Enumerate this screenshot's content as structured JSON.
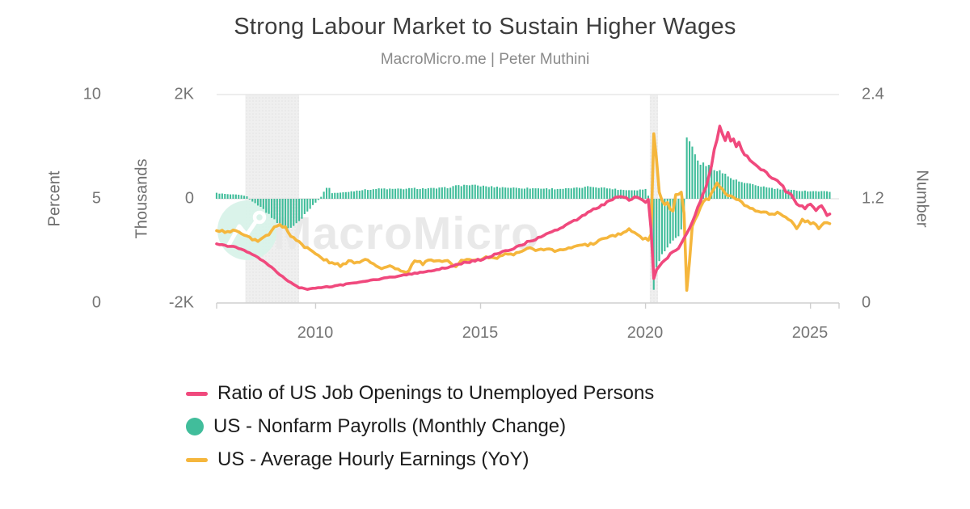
{
  "chart_data": {
    "type": "mixed",
    "title": "Strong Labour Market to Sustain Higher Wages",
    "subtitle": "MacroMicro.me | Peter Muthini",
    "watermark_text": "MacroMicro",
    "grid": "horizontal-only",
    "legend_position": "bottom-left",
    "x_axis": {
      "range": [
        2007.0,
        2025.67
      ],
      "ticks": [
        2010,
        2015,
        2020,
        2025
      ],
      "tick_labels": [
        "2010",
        "2015",
        "2020",
        "2025"
      ]
    },
    "axes": {
      "percent": {
        "label": "Percent",
        "range": [
          0,
          10
        ],
        "ticks": [
          "10",
          "5",
          "0"
        ]
      },
      "thousands": {
        "label": "Thousands",
        "range": [
          -2000,
          2000
        ],
        "ticks": [
          "2K",
          "0",
          "-2K"
        ]
      },
      "number": {
        "label": "Number",
        "range": [
          0,
          2.4
        ],
        "ticks": [
          "2.4",
          "1.2",
          "0"
        ]
      }
    },
    "recession_bands": [
      [
        2007.87,
        2009.5
      ],
      [
        2020.13,
        2020.38
      ]
    ],
    "colors": {
      "ratio_pink": "#F0497D",
      "payrolls_teal": "#41BD9B",
      "earnings_yellow": "#F5B63C",
      "gridline": "#E7E7E7",
      "axis_line": "#CFCFCF",
      "band_gray": "#EFEFEF",
      "watermark_gray": "#E9E9E9",
      "watermark_mint": "#D8F2E9"
    },
    "series": [
      {
        "name": "Ratio of US Job Openings to Unemployed Persons",
        "type": "line",
        "axis": "number",
        "color": "#F0497D",
        "anchors": [
          [
            2007.0,
            0.68
          ],
          [
            2007.25,
            0.66
          ],
          [
            2007.5,
            0.65
          ],
          [
            2007.75,
            0.62
          ],
          [
            2008.0,
            0.58
          ],
          [
            2008.25,
            0.52
          ],
          [
            2008.5,
            0.46
          ],
          [
            2008.75,
            0.38
          ],
          [
            2009.0,
            0.3
          ],
          [
            2009.25,
            0.23
          ],
          [
            2009.5,
            0.18
          ],
          [
            2009.75,
            0.16
          ],
          [
            2010.0,
            0.17
          ],
          [
            2010.5,
            0.19
          ],
          [
            2011.0,
            0.22
          ],
          [
            2011.5,
            0.25
          ],
          [
            2012.0,
            0.28
          ],
          [
            2012.5,
            0.31
          ],
          [
            2013.0,
            0.34
          ],
          [
            2013.5,
            0.37
          ],
          [
            2014.0,
            0.41
          ],
          [
            2014.5,
            0.46
          ],
          [
            2015.0,
            0.5
          ],
          [
            2015.5,
            0.56
          ],
          [
            2016.0,
            0.63
          ],
          [
            2016.5,
            0.71
          ],
          [
            2017.0,
            0.79
          ],
          [
            2017.5,
            0.88
          ],
          [
            2018.0,
            0.98
          ],
          [
            2018.4,
            1.07
          ],
          [
            2018.7,
            1.13
          ],
          [
            2019.0,
            1.2
          ],
          [
            2019.25,
            1.22
          ],
          [
            2019.5,
            1.19
          ],
          [
            2019.75,
            1.22
          ],
          [
            2020.0,
            1.17
          ],
          [
            2020.083,
            1.19
          ],
          [
            2020.167,
            0.85
          ],
          [
            2020.25,
            0.28
          ],
          [
            2020.333,
            0.38
          ],
          [
            2020.5,
            0.46
          ],
          [
            2020.75,
            0.55
          ],
          [
            2021.0,
            0.63
          ],
          [
            2021.167,
            0.74
          ],
          [
            2021.333,
            0.88
          ],
          [
            2021.5,
            1.02
          ],
          [
            2021.667,
            1.18
          ],
          [
            2021.833,
            1.35
          ],
          [
            2022.0,
            1.6
          ],
          [
            2022.083,
            1.75
          ],
          [
            2022.25,
            2.03
          ],
          [
            2022.333,
            1.95
          ],
          [
            2022.417,
            1.88
          ],
          [
            2022.5,
            1.97
          ],
          [
            2022.583,
            1.85
          ],
          [
            2022.667,
            1.9
          ],
          [
            2022.75,
            1.78
          ],
          [
            2022.833,
            1.86
          ],
          [
            2022.917,
            1.76
          ],
          [
            2023.0,
            1.72
          ],
          [
            2023.167,
            1.66
          ],
          [
            2023.333,
            1.6
          ],
          [
            2023.5,
            1.54
          ],
          [
            2023.667,
            1.5
          ],
          [
            2023.833,
            1.44
          ],
          [
            2024.0,
            1.4
          ],
          [
            2024.167,
            1.33
          ],
          [
            2024.333,
            1.26
          ],
          [
            2024.5,
            1.2
          ],
          [
            2024.667,
            1.12
          ],
          [
            2024.833,
            1.08
          ],
          [
            2025.0,
            1.13
          ],
          [
            2025.167,
            1.06
          ],
          [
            2025.333,
            1.12
          ],
          [
            2025.5,
            1.02
          ],
          [
            2025.62,
            1.0
          ]
        ]
      },
      {
        "name": "US - Nonfarm Payrolls (Monthly Change)",
        "type": "bar",
        "axis": "thousands",
        "color": "#41BD9B",
        "anchors": [
          [
            2007.0,
            110
          ],
          [
            2007.33,
            85
          ],
          [
            2007.67,
            75
          ],
          [
            2007.92,
            45
          ],
          [
            2008.08,
            -50
          ],
          [
            2008.33,
            -160
          ],
          [
            2008.58,
            -300
          ],
          [
            2008.83,
            -470
          ],
          [
            2009.08,
            -560
          ],
          [
            2009.33,
            -555
          ],
          [
            2009.5,
            -440
          ],
          [
            2009.67,
            -310
          ],
          [
            2009.83,
            -190
          ],
          [
            2010.0,
            -70
          ],
          [
            2010.17,
            40
          ],
          [
            2010.37,
            260
          ],
          [
            2010.5,
            110
          ],
          [
            2010.75,
            115
          ],
          [
            2011.0,
            135
          ],
          [
            2011.33,
            165
          ],
          [
            2011.67,
            180
          ],
          [
            2012.0,
            195
          ],
          [
            2012.33,
            185
          ],
          [
            2012.67,
            190
          ],
          [
            2013.0,
            200
          ],
          [
            2013.33,
            195
          ],
          [
            2013.67,
            200
          ],
          [
            2014.0,
            215
          ],
          [
            2014.33,
            255
          ],
          [
            2014.67,
            265
          ],
          [
            2015.0,
            245
          ],
          [
            2015.33,
            230
          ],
          [
            2015.67,
            220
          ],
          [
            2016.0,
            210
          ],
          [
            2016.33,
            205
          ],
          [
            2016.67,
            200
          ],
          [
            2017.0,
            195
          ],
          [
            2017.33,
            190
          ],
          [
            2017.67,
            195
          ],
          [
            2018.0,
            210
          ],
          [
            2018.33,
            235
          ],
          [
            2018.67,
            215
          ],
          [
            2019.0,
            190
          ],
          [
            2019.33,
            170
          ],
          [
            2019.67,
            165
          ],
          [
            2019.92,
            180
          ],
          [
            2020.05,
            200
          ],
          [
            2020.167,
            -300
          ],
          [
            2020.25,
            -1800
          ],
          [
            2020.333,
            -1350
          ],
          [
            2020.417,
            -1180
          ],
          [
            2020.5,
            -1080
          ],
          [
            2020.583,
            -1000
          ],
          [
            2020.667,
            -940
          ],
          [
            2020.75,
            -880
          ],
          [
            2020.833,
            -820
          ],
          [
            2020.917,
            -770
          ],
          [
            2021.0,
            -710
          ],
          [
            2021.083,
            -600
          ],
          [
            2021.167,
            -450
          ],
          [
            2021.25,
            1180
          ],
          [
            2021.333,
            1120
          ],
          [
            2021.417,
            1000
          ],
          [
            2021.5,
            840
          ],
          [
            2021.583,
            740
          ],
          [
            2021.667,
            690
          ],
          [
            2021.75,
            660
          ],
          [
            2021.833,
            640
          ],
          [
            2021.917,
            620
          ],
          [
            2022.0,
            600
          ],
          [
            2022.17,
            565
          ],
          [
            2022.33,
            500
          ],
          [
            2022.5,
            430
          ],
          [
            2022.67,
            370
          ],
          [
            2022.83,
            330
          ],
          [
            2023.0,
            300
          ],
          [
            2023.25,
            265
          ],
          [
            2023.5,
            240
          ],
          [
            2023.75,
            210
          ],
          [
            2024.0,
            185
          ],
          [
            2024.25,
            172
          ],
          [
            2024.5,
            162
          ],
          [
            2024.75,
            152
          ],
          [
            2025.0,
            148
          ],
          [
            2025.25,
            142
          ],
          [
            2025.5,
            140
          ],
          [
            2025.62,
            138
          ]
        ]
      },
      {
        "name": "US - Average Hourly Earnings (YoY)",
        "type": "line",
        "axis": "percent",
        "color": "#F5B63C",
        "anchors": [
          [
            2007.0,
            3.5
          ],
          [
            2007.25,
            3.4
          ],
          [
            2007.5,
            3.5
          ],
          [
            2007.75,
            3.3
          ],
          [
            2008.0,
            3.1
          ],
          [
            2008.25,
            3.0
          ],
          [
            2008.5,
            3.2
          ],
          [
            2008.75,
            3.6
          ],
          [
            2008.917,
            3.8
          ],
          [
            2009.083,
            3.6
          ],
          [
            2009.25,
            3.2
          ],
          [
            2009.5,
            2.9
          ],
          [
            2009.75,
            2.6
          ],
          [
            2010.0,
            2.4
          ],
          [
            2010.25,
            2.1
          ],
          [
            2010.5,
            1.9
          ],
          [
            2010.75,
            1.8
          ],
          [
            2011.0,
            2.0
          ],
          [
            2011.25,
            1.9
          ],
          [
            2011.5,
            2.1
          ],
          [
            2011.75,
            1.9
          ],
          [
            2012.0,
            1.7
          ],
          [
            2012.25,
            1.8
          ],
          [
            2012.5,
            1.6
          ],
          [
            2012.75,
            1.4
          ],
          [
            2013.0,
            2.0
          ],
          [
            2013.25,
            1.9
          ],
          [
            2013.5,
            2.1
          ],
          [
            2013.75,
            2.0
          ],
          [
            2014.0,
            2.0
          ],
          [
            2014.25,
            1.8
          ],
          [
            2014.5,
            2.1
          ],
          [
            2014.75,
            2.0
          ],
          [
            2015.0,
            2.1
          ],
          [
            2015.25,
            2.2
          ],
          [
            2015.5,
            2.1
          ],
          [
            2015.75,
            2.4
          ],
          [
            2016.0,
            2.3
          ],
          [
            2016.25,
            2.5
          ],
          [
            2016.5,
            2.6
          ],
          [
            2016.75,
            2.5
          ],
          [
            2017.0,
            2.6
          ],
          [
            2017.25,
            2.5
          ],
          [
            2017.5,
            2.6
          ],
          [
            2017.75,
            2.7
          ],
          [
            2018.0,
            2.8
          ],
          [
            2018.25,
            2.8
          ],
          [
            2018.5,
            2.9
          ],
          [
            2018.75,
            3.1
          ],
          [
            2019.0,
            3.2
          ],
          [
            2019.25,
            3.3
          ],
          [
            2019.5,
            3.5
          ],
          [
            2019.75,
            3.3
          ],
          [
            2019.917,
            3.1
          ],
          [
            2020.083,
            3.0
          ],
          [
            2020.167,
            3.3
          ],
          [
            2020.25,
            8.1
          ],
          [
            2020.333,
            6.9
          ],
          [
            2020.417,
            5.3
          ],
          [
            2020.5,
            4.9
          ],
          [
            2020.583,
            4.7
          ],
          [
            2020.667,
            4.8
          ],
          [
            2020.75,
            4.5
          ],
          [
            2020.833,
            4.4
          ],
          [
            2020.917,
            5.2
          ],
          [
            2021.0,
            5.2
          ],
          [
            2021.083,
            5.3
          ],
          [
            2021.167,
            4.3
          ],
          [
            2021.25,
            0.6
          ],
          [
            2021.333,
            2.0
          ],
          [
            2021.417,
            3.7
          ],
          [
            2021.5,
            4.0
          ],
          [
            2021.583,
            4.2
          ],
          [
            2021.667,
            4.6
          ],
          [
            2021.75,
            4.8
          ],
          [
            2021.833,
            5.0
          ],
          [
            2021.917,
            4.9
          ],
          [
            2022.0,
            5.3
          ],
          [
            2022.083,
            5.5
          ],
          [
            2022.167,
            5.8
          ],
          [
            2022.25,
            5.6
          ],
          [
            2022.333,
            5.4
          ],
          [
            2022.417,
            5.3
          ],
          [
            2022.5,
            5.2
          ],
          [
            2022.667,
            5.1
          ],
          [
            2022.833,
            4.9
          ],
          [
            2023.0,
            4.7
          ],
          [
            2023.25,
            4.5
          ],
          [
            2023.5,
            4.4
          ],
          [
            2023.75,
            4.3
          ],
          [
            2024.0,
            4.3
          ],
          [
            2024.25,
            4.1
          ],
          [
            2024.417,
            4.0
          ],
          [
            2024.583,
            3.6
          ],
          [
            2024.75,
            4.0
          ],
          [
            2024.917,
            3.9
          ],
          [
            2025.083,
            3.8
          ],
          [
            2025.25,
            3.6
          ],
          [
            2025.417,
            3.9
          ],
          [
            2025.62,
            3.8
          ]
        ]
      }
    ]
  }
}
